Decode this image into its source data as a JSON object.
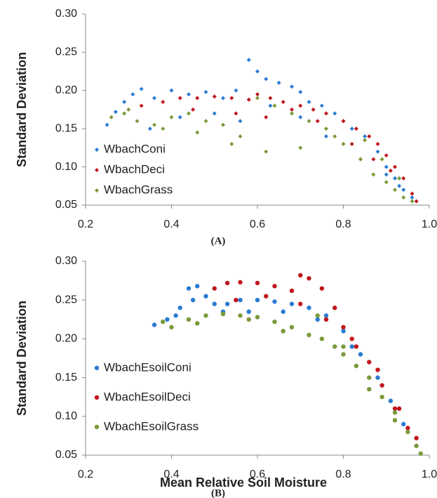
{
  "chart_data": [
    {
      "type": "scatter",
      "panel_label": "(A)",
      "ylabel": "Standard Deviation",
      "xlim": [
        0.2,
        1.0
      ],
      "ylim": [
        0.05,
        0.3
      ],
      "xticks": [
        0.2,
        0.4,
        0.6,
        0.8,
        {
          "value": 1.0,
          "label": "1.0"
        }
      ],
      "yticks": [
        0.05,
        {
          "value": 0.1,
          "label": "0.10"
        },
        0.15,
        {
          "value": 0.2,
          "label": "0.20"
        },
        0.25,
        {
          "value": 0.3,
          "label": "0.30"
        }
      ],
      "legend": "left",
      "marker": "diamond",
      "series": [
        {
          "name": "WbachConi",
          "color": "#2a7bd1",
          "x": [
            0.25,
            0.27,
            0.29,
            0.31,
            0.33,
            0.36,
            0.4,
            0.44,
            0.48,
            0.52,
            0.55,
            0.58,
            0.6,
            0.62,
            0.65,
            0.68,
            0.7,
            0.72,
            0.75,
            0.78,
            0.8,
            0.82,
            0.85,
            0.88,
            0.9,
            0.92,
            0.94,
            0.96,
            0.35,
            0.42,
            0.5,
            0.56,
            0.63,
            0.7,
            0.76,
            0.84,
            0.9,
            0.93
          ],
          "values": [
            0.155,
            0.172,
            0.185,
            0.195,
            0.202,
            0.19,
            0.2,
            0.195,
            0.198,
            0.19,
            0.2,
            0.24,
            0.225,
            0.215,
            0.21,
            0.205,
            0.198,
            0.185,
            0.18,
            0.17,
            0.16,
            0.15,
            0.14,
            0.12,
            0.1,
            0.085,
            0.07,
            0.06,
            0.15,
            0.165,
            0.17,
            0.16,
            0.18,
            0.165,
            0.14,
            0.11,
            0.09,
            0.075
          ]
        },
        {
          "name": "WbachDeci",
          "color": "#c0161d",
          "x": [
            0.33,
            0.38,
            0.42,
            0.46,
            0.5,
            0.54,
            0.58,
            0.6,
            0.63,
            0.66,
            0.7,
            0.73,
            0.76,
            0.8,
            0.83,
            0.86,
            0.88,
            0.9,
            0.92,
            0.94,
            0.96,
            0.97,
            0.45,
            0.55,
            0.62,
            0.68,
            0.74,
            0.82,
            0.87,
            0.91
          ],
          "values": [
            0.18,
            0.185,
            0.19,
            0.19,
            0.192,
            0.19,
            0.188,
            0.195,
            0.19,
            0.185,
            0.18,
            0.175,
            0.17,
            0.16,
            0.15,
            0.14,
            0.13,
            0.115,
            0.1,
            0.085,
            0.065,
            0.055,
            0.175,
            0.17,
            0.165,
            0.175,
            0.16,
            0.13,
            0.11,
            0.095
          ]
        },
        {
          "name": "WbachGrass",
          "color": "#7a9a3a",
          "x": [
            0.26,
            0.29,
            0.32,
            0.36,
            0.4,
            0.44,
            0.48,
            0.52,
            0.56,
            0.6,
            0.64,
            0.68,
            0.72,
            0.76,
            0.8,
            0.84,
            0.87,
            0.9,
            0.92,
            0.94,
            0.96,
            0.3,
            0.38,
            0.46,
            0.54,
            0.62,
            0.7,
            0.78,
            0.85,
            0.89,
            0.93
          ],
          "values": [
            0.165,
            0.17,
            0.16,
            0.155,
            0.165,
            0.17,
            0.16,
            0.155,
            0.14,
            0.19,
            0.18,
            0.17,
            0.16,
            0.15,
            0.13,
            0.11,
            0.09,
            0.08,
            0.07,
            0.06,
            0.055,
            0.175,
            0.15,
            0.145,
            0.13,
            0.12,
            0.125,
            0.14,
            0.135,
            0.11,
            0.085
          ]
        }
      ]
    },
    {
      "type": "scatter",
      "panel_label": "(B)",
      "ylabel": "Standard Deviation",
      "xlabel": "Mean Relative Soil Moisture",
      "xlim": [
        0.2,
        1.0
      ],
      "ylim": [
        0.05,
        0.3
      ],
      "xticks": [
        0.2,
        0.4,
        0.6,
        0.8,
        {
          "value": 1.0,
          "label": "1.0"
        }
      ],
      "yticks": [
        0.05,
        {
          "value": 0.1,
          "label": "0.10"
        },
        0.15,
        {
          "value": 0.2,
          "label": "0.20"
        },
        0.25,
        {
          "value": 0.3,
          "label": "0.30"
        }
      ],
      "legend": "left",
      "marker": "circle",
      "series": [
        {
          "name": "WbachEsoilConi",
          "color": "#2a7bd1",
          "x": [
            0.36,
            0.39,
            0.42,
            0.44,
            0.46,
            0.48,
            0.5,
            0.53,
            0.56,
            0.6,
            0.64,
            0.68,
            0.72,
            0.76,
            0.8,
            0.84,
            0.88,
            0.91,
            0.94,
            0.41,
            0.45,
            0.52,
            0.58,
            0.66,
            0.74,
            0.82
          ],
          "values": [
            0.218,
            0.225,
            0.24,
            0.265,
            0.268,
            0.255,
            0.245,
            0.245,
            0.25,
            0.25,
            0.248,
            0.245,
            0.24,
            0.23,
            0.21,
            0.18,
            0.15,
            0.12,
            0.09,
            0.23,
            0.25,
            0.235,
            0.235,
            0.235,
            0.225,
            0.19
          ]
        },
        {
          "name": "WbachEsoilDeci",
          "color": "#c0161d",
          "x": [
            0.5,
            0.53,
            0.56,
            0.6,
            0.64,
            0.68,
            0.7,
            0.72,
            0.75,
            0.78,
            0.8,
            0.83,
            0.86,
            0.89,
            0.92,
            0.95,
            0.97,
            0.55,
            0.62,
            0.7,
            0.76,
            0.82,
            0.88,
            0.93
          ],
          "values": [
            0.265,
            0.272,
            0.273,
            0.272,
            0.268,
            0.262,
            0.282,
            0.278,
            0.265,
            0.24,
            0.215,
            0.19,
            0.17,
            0.14,
            0.11,
            0.085,
            0.072,
            0.25,
            0.255,
            0.245,
            0.225,
            0.2,
            0.16,
            0.11
          ]
        },
        {
          "name": "WbachEsoilGrass",
          "color": "#7a9a3a",
          "x": [
            0.38,
            0.4,
            0.44,
            0.48,
            0.52,
            0.56,
            0.6,
            0.64,
            0.68,
            0.72,
            0.75,
            0.78,
            0.8,
            0.83,
            0.86,
            0.89,
            0.92,
            0.95,
            0.97,
            0.98,
            0.46,
            0.58,
            0.66,
            0.74,
            0.8,
            0.86,
            0.92
          ],
          "values": [
            0.222,
            0.215,
            0.225,
            0.23,
            0.232,
            0.23,
            0.228,
            0.222,
            0.215,
            0.205,
            0.2,
            0.19,
            0.18,
            0.165,
            0.15,
            0.125,
            0.105,
            0.08,
            0.062,
            0.052,
            0.22,
            0.225,
            0.21,
            0.23,
            0.19,
            0.135,
            0.095
          ]
        }
      ]
    }
  ]
}
